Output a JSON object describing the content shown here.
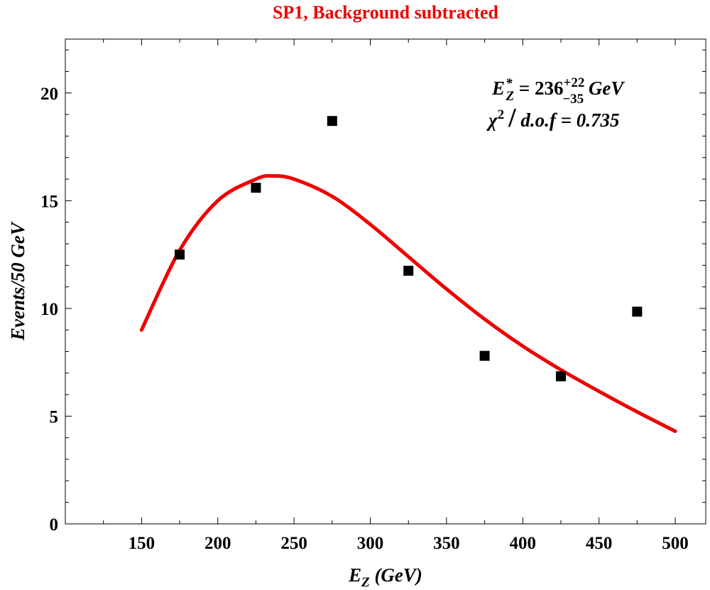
{
  "chart_data": {
    "type": "scatter",
    "title": "SP1, Background subtracted",
    "xlabel": {
      "base": "E",
      "sub": "Z",
      "rest": " (GeV)"
    },
    "ylabel": "Events/50 GeV",
    "xlim": [
      100,
      520
    ],
    "ylim": [
      0,
      22.5
    ],
    "x_ticks": [
      150,
      200,
      250,
      300,
      350,
      400,
      450,
      500
    ],
    "y_ticks": [
      0,
      5,
      10,
      15,
      20
    ],
    "points": [
      {
        "x": 175,
        "y": 12.5
      },
      {
        "x": 225,
        "y": 15.6
      },
      {
        "x": 275,
        "y": 18.7
      },
      {
        "x": 325,
        "y": 11.75
      },
      {
        "x": 375,
        "y": 7.8
      },
      {
        "x": 425,
        "y": 6.85
      },
      {
        "x": 475,
        "y": 9.85
      }
    ],
    "fit_curve": {
      "x_range": [
        150,
        500
      ],
      "samples": [
        {
          "x": 150,
          "y": 9.0
        },
        {
          "x": 175,
          "y": 12.7
        },
        {
          "x": 200,
          "y": 15.0
        },
        {
          "x": 225,
          "y": 16.0
        },
        {
          "x": 236,
          "y": 16.15
        },
        {
          "x": 250,
          "y": 16.0
        },
        {
          "x": 275,
          "y": 15.2
        },
        {
          "x": 300,
          "y": 13.9
        },
        {
          "x": 325,
          "y": 12.4
        },
        {
          "x": 350,
          "y": 10.9
        },
        {
          "x": 375,
          "y": 9.5
        },
        {
          "x": 400,
          "y": 8.25
        },
        {
          "x": 425,
          "y": 7.15
        },
        {
          "x": 450,
          "y": 6.15
        },
        {
          "x": 475,
          "y": 5.2
        },
        {
          "x": 500,
          "y": 4.3
        }
      ]
    },
    "annotations": {
      "peak": {
        "base": "E",
        "sup": "*",
        "sub": "Z",
        "value": " = 236",
        "err_up": "+22",
        "err_down": "−35",
        "unit": " GeV"
      },
      "chi2": {
        "symbol": "χ",
        "power": "2",
        "slash": "/",
        "rest": " d.o.f = 0.735"
      }
    },
    "colors": {
      "fit": "#ee0000",
      "title": "#ee0000",
      "points": "#000000",
      "axes": "#000000"
    }
  }
}
